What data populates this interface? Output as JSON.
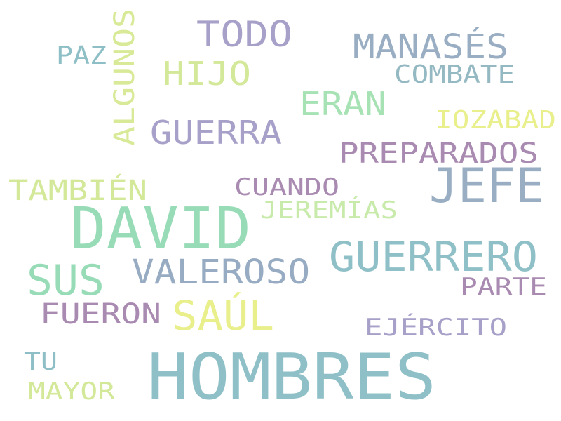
{
  "palette": {
    "slate_blue": "#8e98b5",
    "teal": "#8fc0c7",
    "mint": "#98dbb7",
    "lime": "#d3e898",
    "yellow": "#e8ef8b",
    "purple": "#a98ab1",
    "lavender": "#a7a0c8"
  },
  "words": [
    {
      "id": "hombres",
      "text": "HOMBRES",
      "color": "#8fc0c7"
    },
    {
      "id": "david",
      "text": "DAVID",
      "color": "#98dbb7"
    },
    {
      "id": "jefe",
      "text": "JEFE",
      "color": "#9aaec3"
    },
    {
      "id": "guerrero",
      "text": "GUERRERO",
      "color": "#8fc0c7"
    },
    {
      "id": "sus",
      "text": "SUS",
      "color": "#98dbb7"
    },
    {
      "id": "saul",
      "text": "SAÚL",
      "color": "#e8ef8b"
    },
    {
      "id": "valeroso",
      "text": "VALEROSO",
      "color": "#97acc2"
    },
    {
      "id": "todo",
      "text": "TODO",
      "color": "#a7a0c8"
    },
    {
      "id": "manases",
      "text": "MANASÉS",
      "color": "#9aaec3"
    },
    {
      "id": "guerra",
      "text": "GUERRA",
      "color": "#a7a0c8"
    },
    {
      "id": "hijo",
      "text": "HIJO",
      "color": "#d3e898"
    },
    {
      "id": "eran",
      "text": "ERAN",
      "color": "#a6e2b4"
    },
    {
      "id": "preparados",
      "text": "PREPARADOS",
      "color": "#a98ab1"
    },
    {
      "id": "fueron",
      "text": "FUERON",
      "color": "#a98ab1"
    },
    {
      "id": "tambien",
      "text": "TAMBIÉN",
      "color": "#d3e898"
    },
    {
      "id": "algunos",
      "text": "ALGUNOS",
      "color": "#d8ea98"
    },
    {
      "id": "combate",
      "text": "COMBATE",
      "color": "#95b9c2"
    },
    {
      "id": "iozabad",
      "text": "IOZABAD",
      "color": "#e8ef8b"
    },
    {
      "id": "cuando",
      "text": "CUANDO",
      "color": "#a98ab1"
    },
    {
      "id": "jeremias",
      "text": "JEREMÍAS",
      "color": "#c8eaaa"
    },
    {
      "id": "parte",
      "text": "PARTE",
      "color": "#a98ab1"
    },
    {
      "id": "ejercito",
      "text": "EJÉRCITO",
      "color": "#a7a0c8"
    },
    {
      "id": "mayor",
      "text": "MAYOR",
      "color": "#d3e898"
    },
    {
      "id": "paz",
      "text": "PAZ",
      "color": "#8fbfc6"
    },
    {
      "id": "tu",
      "text": "TU",
      "color": "#8fbfc6"
    }
  ]
}
